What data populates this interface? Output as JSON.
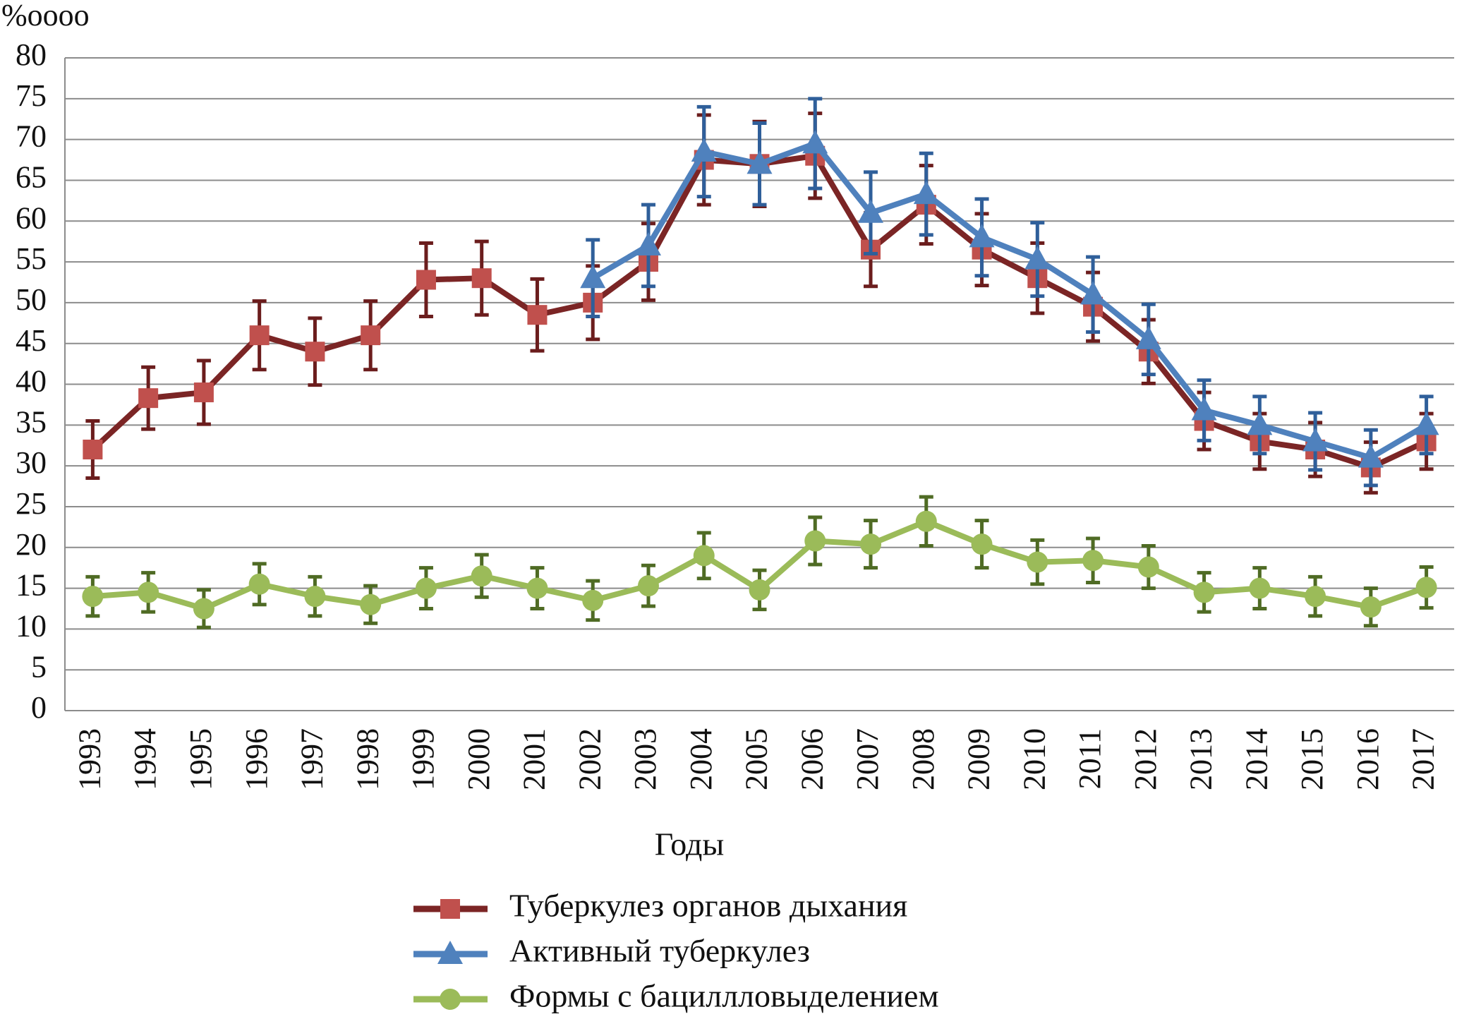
{
  "chart_data": {
    "type": "line",
    "y_unit_label": "%oooo",
    "x_label": "Годы",
    "categories": [
      "1993",
      "1994",
      "1995",
      "1996",
      "1997",
      "1998",
      "1999",
      "2000",
      "2001",
      "2002",
      "2003",
      "2004",
      "2005",
      "2006",
      "2007",
      "2008",
      "2009",
      "2010",
      "2011",
      "2012",
      "2013",
      "2014",
      "2015",
      "2016",
      "2017"
    ],
    "series": [
      {
        "name": "Туберкулез органов дыхания",
        "color": "#7b2525",
        "marker": "square",
        "marker_color": "#c0504d",
        "error_color": "#6b1d1d",
        "values": [
          32,
          38.3,
          39,
          46,
          44,
          46,
          52.8,
          53,
          48.5,
          50,
          55,
          67.5,
          67,
          68,
          56.5,
          62,
          56.5,
          53,
          49.5,
          44,
          35.5,
          33,
          32,
          29.8,
          33
        ],
        "errors": [
          3.5,
          3.8,
          3.9,
          4.2,
          4.1,
          4.2,
          4.5,
          4.5,
          4.4,
          4.5,
          4.7,
          5.5,
          5.2,
          5.2,
          4.5,
          4.8,
          4.4,
          4.3,
          4.2,
          3.9,
          3.5,
          3.4,
          3.3,
          3.1,
          3.4
        ]
      },
      {
        "name": "Активный туберкулез",
        "color": "#4f81bd",
        "marker": "triangle",
        "marker_color": "#4f81bd",
        "error_color": "#2f5f9a",
        "values": [
          null,
          null,
          null,
          null,
          null,
          null,
          null,
          null,
          null,
          53,
          57,
          68.5,
          67,
          69.5,
          61,
          63.3,
          58,
          55.3,
          51,
          45.5,
          36.8,
          35,
          33,
          31,
          35
        ],
        "errors": [
          null,
          null,
          null,
          null,
          null,
          null,
          null,
          null,
          null,
          4.7,
          5,
          5.5,
          5,
          5.5,
          5,
          5,
          4.7,
          4.5,
          4.6,
          4.3,
          3.7,
          3.5,
          3.5,
          3.4,
          3.5
        ]
      },
      {
        "name": "Формы с бациллловыделением",
        "color": "#9bbb59",
        "marker": "circle",
        "marker_color": "#9bbb59",
        "error_color": "#4f6b24",
        "values": [
          14,
          14.5,
          12.5,
          15.5,
          14,
          13,
          15,
          16.5,
          15,
          13.5,
          15.3,
          19,
          14.8,
          20.8,
          20.4,
          23.2,
          20.4,
          18.2,
          18.4,
          17.6,
          14.5,
          15,
          14,
          12.7,
          15.1
        ],
        "errors": [
          2.4,
          2.4,
          2.3,
          2.5,
          2.4,
          2.3,
          2.5,
          2.6,
          2.5,
          2.4,
          2.5,
          2.8,
          2.4,
          2.9,
          2.9,
          3,
          2.9,
          2.7,
          2.7,
          2.6,
          2.4,
          2.5,
          2.4,
          2.3,
          2.5
        ]
      }
    ],
    "ylim": [
      0,
      80
    ],
    "yticks": [
      0,
      5,
      10,
      15,
      20,
      25,
      30,
      35,
      40,
      45,
      50,
      55,
      60,
      65,
      70,
      75,
      80
    ],
    "grid": true
  }
}
